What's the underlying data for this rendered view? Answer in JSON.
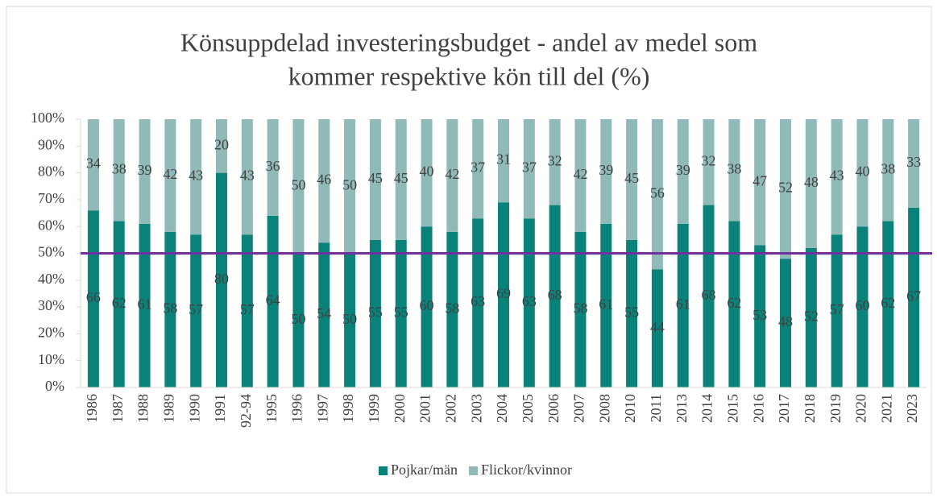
{
  "chart_data": {
    "type": "stacked_bar",
    "title": [
      "Könsuppdelad investeringsbudget - andel av medel som",
      "kommer respektive kön till del (%)"
    ],
    "categories": [
      "1986",
      "1987",
      "1988",
      "1989",
      "1990",
      "1991",
      "92-94",
      "1995",
      "1996",
      "1997",
      "1998",
      "1999",
      "2000",
      "2001",
      "2002",
      "2003",
      "2004",
      "2005",
      "2006",
      "2007",
      "2008",
      "2010",
      "2011",
      "2013",
      "2014",
      "2015",
      "2016",
      "2017",
      "2018",
      "2019",
      "2020",
      "2021",
      "2023"
    ],
    "series": [
      {
        "name": "Pojkar/män",
        "color": "#0b8279",
        "values": [
          66,
          62,
          61,
          58,
          57,
          80,
          57,
          64,
          50,
          54,
          50,
          55,
          55,
          60,
          58,
          63,
          69,
          63,
          68,
          58,
          61,
          55,
          44,
          61,
          68,
          62,
          53,
          48,
          52,
          57,
          60,
          62,
          67
        ]
      },
      {
        "name": "Flickor/kvinnor",
        "color": "#8fbab7",
        "values": [
          34,
          38,
          39,
          42,
          43,
          20,
          43,
          36,
          50,
          46,
          50,
          45,
          45,
          40,
          42,
          37,
          31,
          37,
          32,
          42,
          39,
          45,
          56,
          39,
          32,
          38,
          47,
          52,
          48,
          43,
          40,
          38,
          33
        ]
      }
    ],
    "ylim": [
      0,
      100
    ],
    "yticks": [
      {
        "value": 0,
        "label": "0%"
      },
      {
        "value": 10,
        "label": "10%"
      },
      {
        "value": 20,
        "label": "20%"
      },
      {
        "value": 30,
        "label": "30%"
      },
      {
        "value": 40,
        "label": "40%"
      },
      {
        "value": 50,
        "label": "50%"
      },
      {
        "value": 60,
        "label": "60%"
      },
      {
        "value": 70,
        "label": "70%"
      },
      {
        "value": 80,
        "label": "80%"
      },
      {
        "value": 90,
        "label": "90%"
      },
      {
        "value": 100,
        "label": "100%"
      }
    ],
    "reference_line": {
      "value": 50,
      "color": "#7030a0"
    },
    "legend": "bottom"
  }
}
